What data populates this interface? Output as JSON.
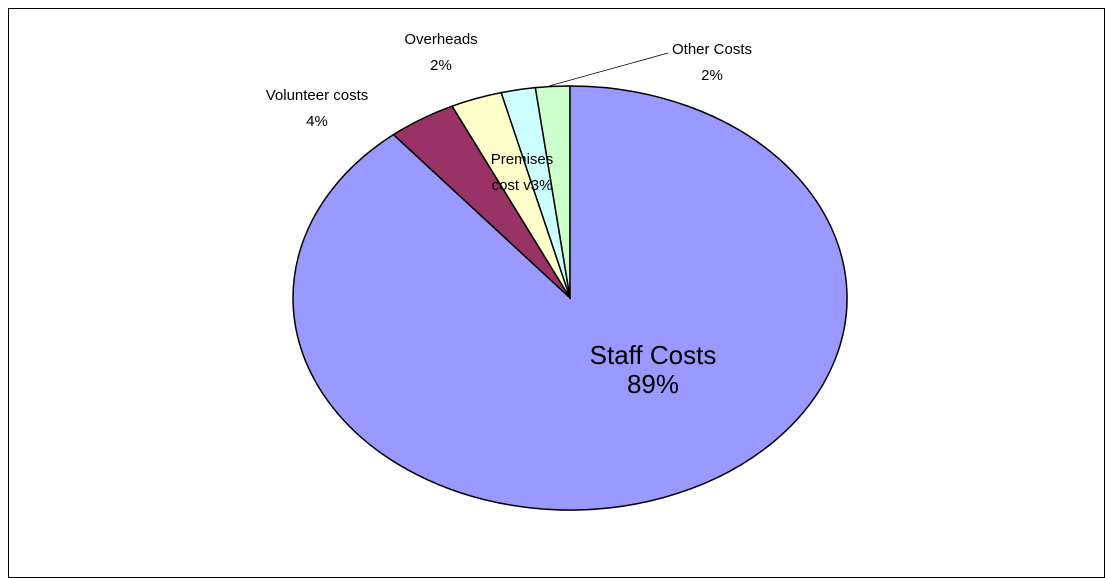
{
  "chart_data": {
    "type": "pie",
    "title": "",
    "slices": [
      {
        "name": "Staff Costs",
        "value": 89,
        "label": "89%",
        "color": "#9999ff"
      },
      {
        "name": "Volunteer costs",
        "value": 4,
        "label": "4%",
        "color": "#993366"
      },
      {
        "name": "Premises cost v",
        "value": 3,
        "label": "3%",
        "color": "#ffffcc"
      },
      {
        "name": "Overheads",
        "value": 2,
        "label": "2%",
        "color": "#ccffff"
      },
      {
        "name": "Other Costs",
        "value": 2,
        "label": "2%",
        "color": "#ccffcc"
      }
    ],
    "start_angle_deg": 0,
    "direction": "clockwise",
    "legend": "none",
    "edge_color": "#000000"
  }
}
